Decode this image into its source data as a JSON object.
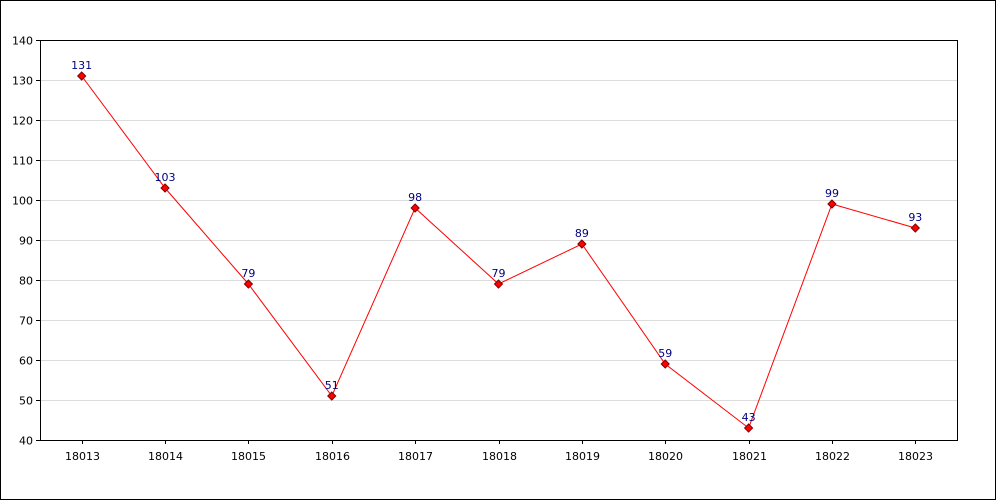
{
  "chart_data": {
    "type": "line",
    "title": "",
    "xlabel": "",
    "ylabel": "",
    "categories": [
      "18013",
      "18014",
      "18015",
      "18016",
      "18017",
      "18018",
      "18019",
      "18020",
      "18021",
      "18022",
      "18023"
    ],
    "series": [
      {
        "values": [
          131,
          103,
          79,
          51,
          98,
          79,
          89,
          59,
          43,
          99,
          93
        ]
      }
    ],
    "ylim": [
      40,
      140
    ],
    "yticks": [
      40,
      50,
      60,
      70,
      80,
      90,
      100,
      110,
      120,
      130,
      140
    ],
    "grid": true,
    "legend": "none",
    "colors": {
      "line": "#ff0000",
      "marker_fill": "#ff0000",
      "marker_stroke": "#800000",
      "data_label": "#000080",
      "grid": "#dcdcdc",
      "axis": "#000000"
    }
  }
}
